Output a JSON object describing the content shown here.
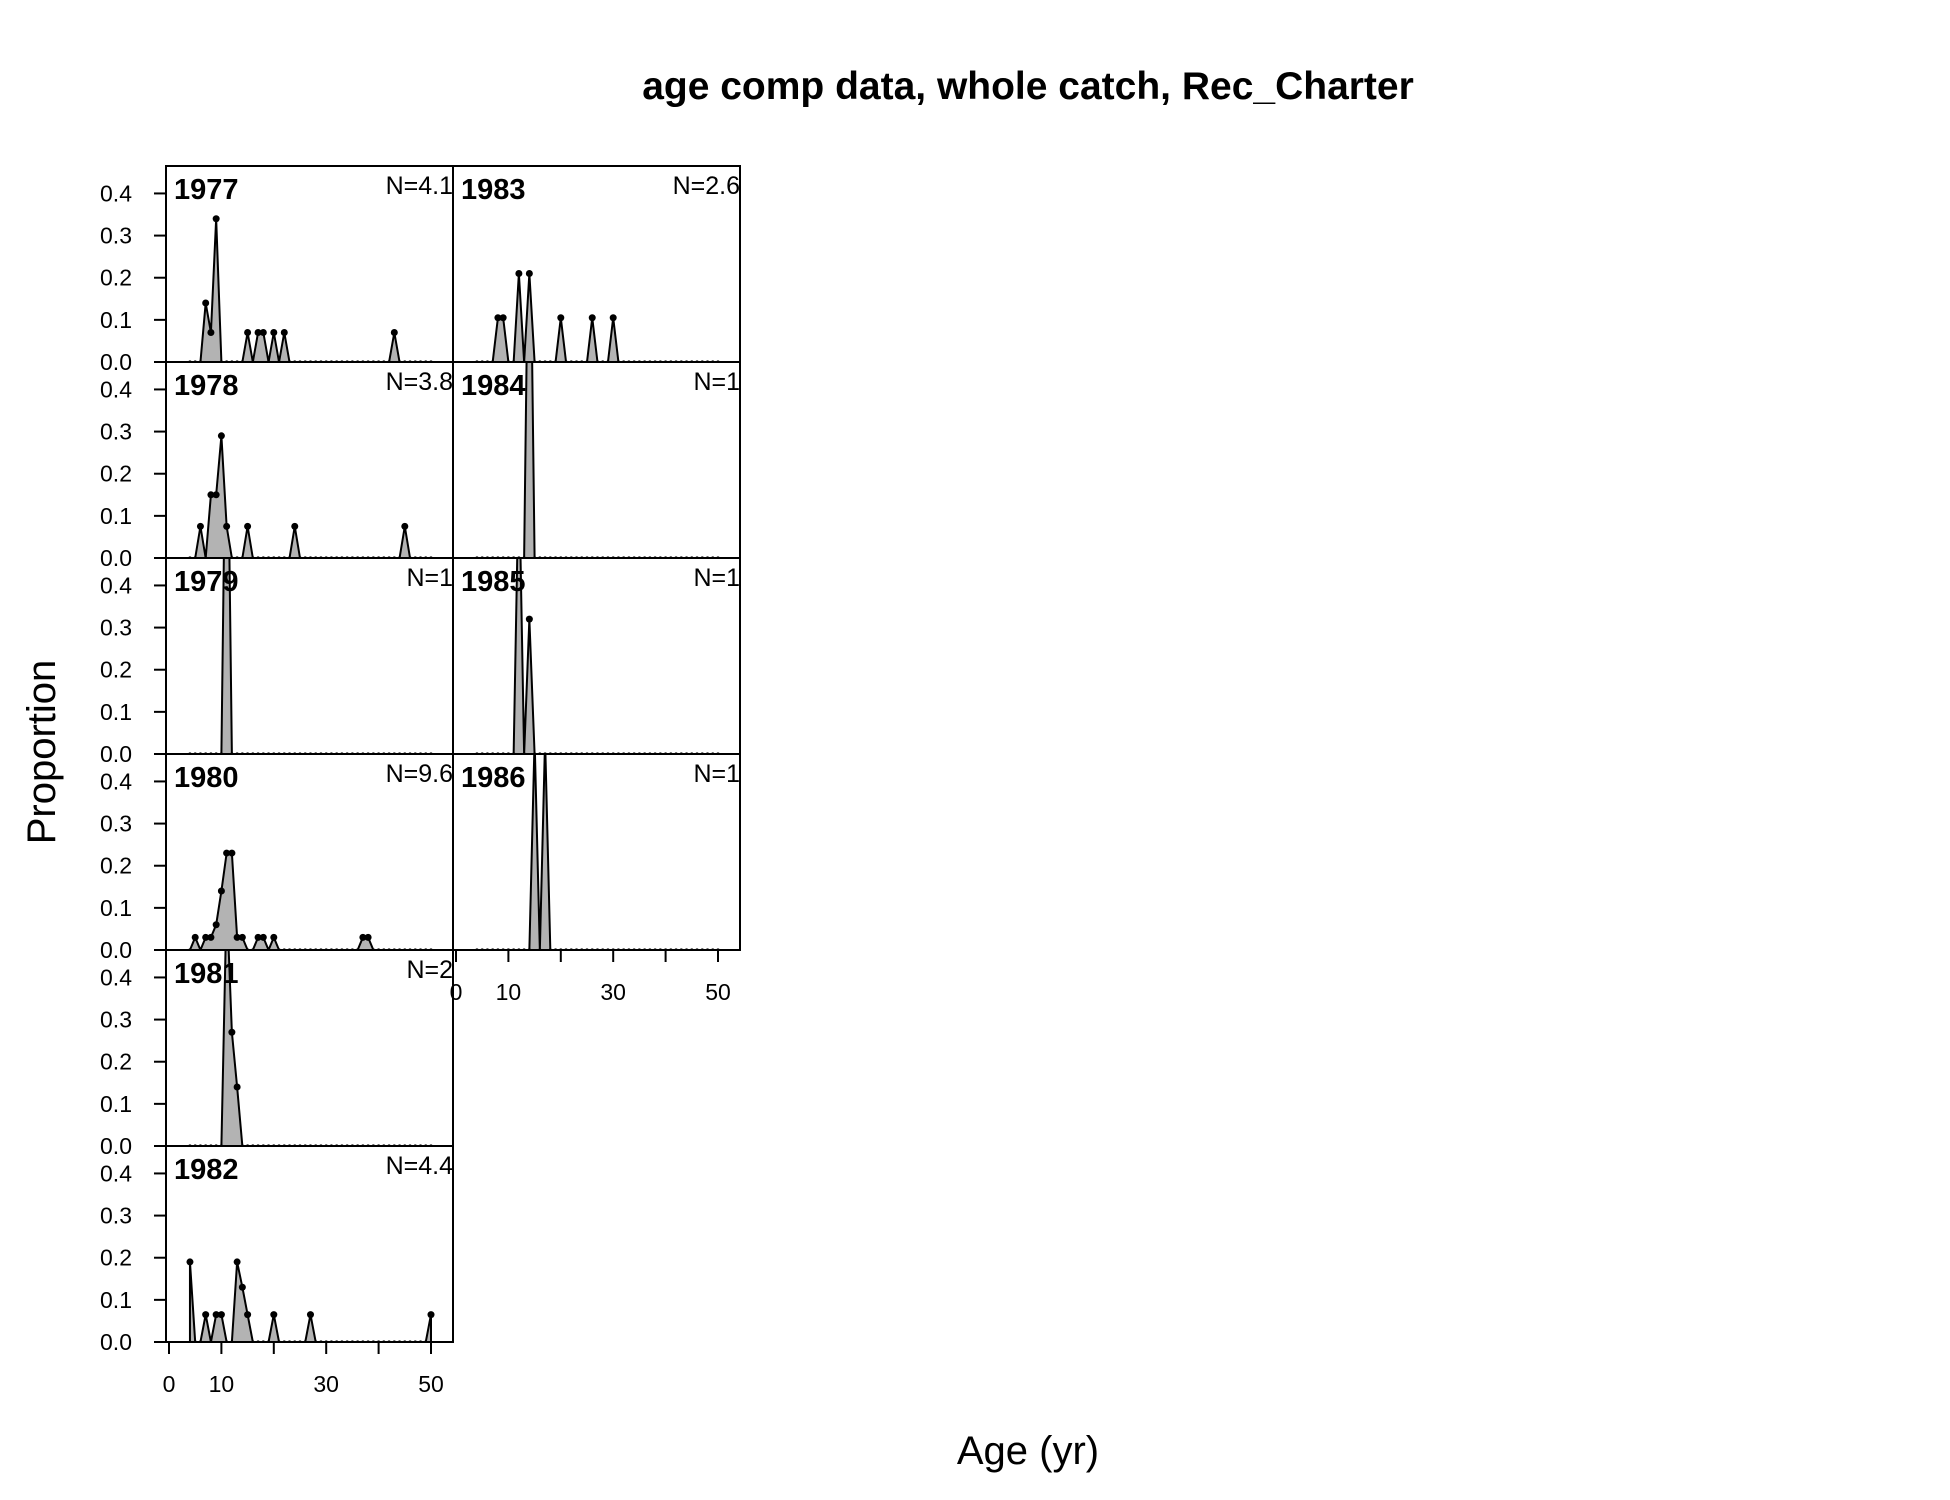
{
  "chart_data": {
    "type": "area",
    "title": "age comp data, whole catch, Rec_Charter",
    "xlabel": "Age (yr)",
    "ylabel": "Proportion",
    "xlim": [
      0,
      50
    ],
    "ylim": [
      0,
      0.4
    ],
    "x_ticks": [
      0,
      10,
      30,
      50
    ],
    "y_ticks": [
      "0.0",
      "0.1",
      "0.2",
      "0.3",
      "0.4"
    ],
    "ages": [
      4,
      50
    ],
    "fill_color": "#b3b3b3",
    "line_color": "#000000",
    "panels": [
      {
        "year": "1977",
        "n_label": "N=4.1",
        "values": {
          "7": 0.14,
          "8": 0.07,
          "9": 0.34,
          "15": 0.07,
          "17": 0.07,
          "18": 0.07,
          "20": 0.07,
          "22": 0.07,
          "43": 0.07
        }
      },
      {
        "year": "1978",
        "n_label": "N=3.8",
        "values": {
          "6": 0.075,
          "8": 0.15,
          "9": 0.15,
          "10": 0.29,
          "11": 0.075,
          "15": 0.075,
          "24": 0.075,
          "45": 0.075
        }
      },
      {
        "year": "1979",
        "n_label": "N=1",
        "values": {
          "11": 1.0
        }
      },
      {
        "year": "1980",
        "n_label": "N=9.6",
        "values": {
          "5": 0.03,
          "7": 0.03,
          "8": 0.03,
          "9": 0.06,
          "10": 0.14,
          "11": 0.23,
          "12": 0.23,
          "13": 0.03,
          "14": 0.03,
          "17": 0.03,
          "18": 0.03,
          "20": 0.03,
          "37": 0.03,
          "38": 0.03
        }
      },
      {
        "year": "1981",
        "n_label": "N=2",
        "values": {
          "11": 0.59,
          "12": 0.27,
          "13": 0.14
        }
      },
      {
        "year": "1982",
        "n_label": "N=4.4",
        "values": {
          "4": 0.19,
          "7": 0.065,
          "9": 0.065,
          "10": 0.065,
          "13": 0.19,
          "14": 0.13,
          "15": 0.065,
          "20": 0.065,
          "27": 0.065,
          "50": 0.065
        }
      },
      {
        "year": "1983",
        "n_label": "N=2.6",
        "values": {
          "8": 0.105,
          "9": 0.105,
          "12": 0.21,
          "14": 0.21,
          "20": 0.105,
          "26": 0.105,
          "30": 0.105
        }
      },
      {
        "year": "1984",
        "n_label": "N=1",
        "values": {
          "14": 1.0
        }
      },
      {
        "year": "1985",
        "n_label": "N=1",
        "values": {
          "12": 0.68,
          "14": 0.32
        }
      },
      {
        "year": "1986",
        "n_label": "N=1",
        "values": {
          "15": 0.5,
          "17": 0.5
        }
      }
    ]
  }
}
